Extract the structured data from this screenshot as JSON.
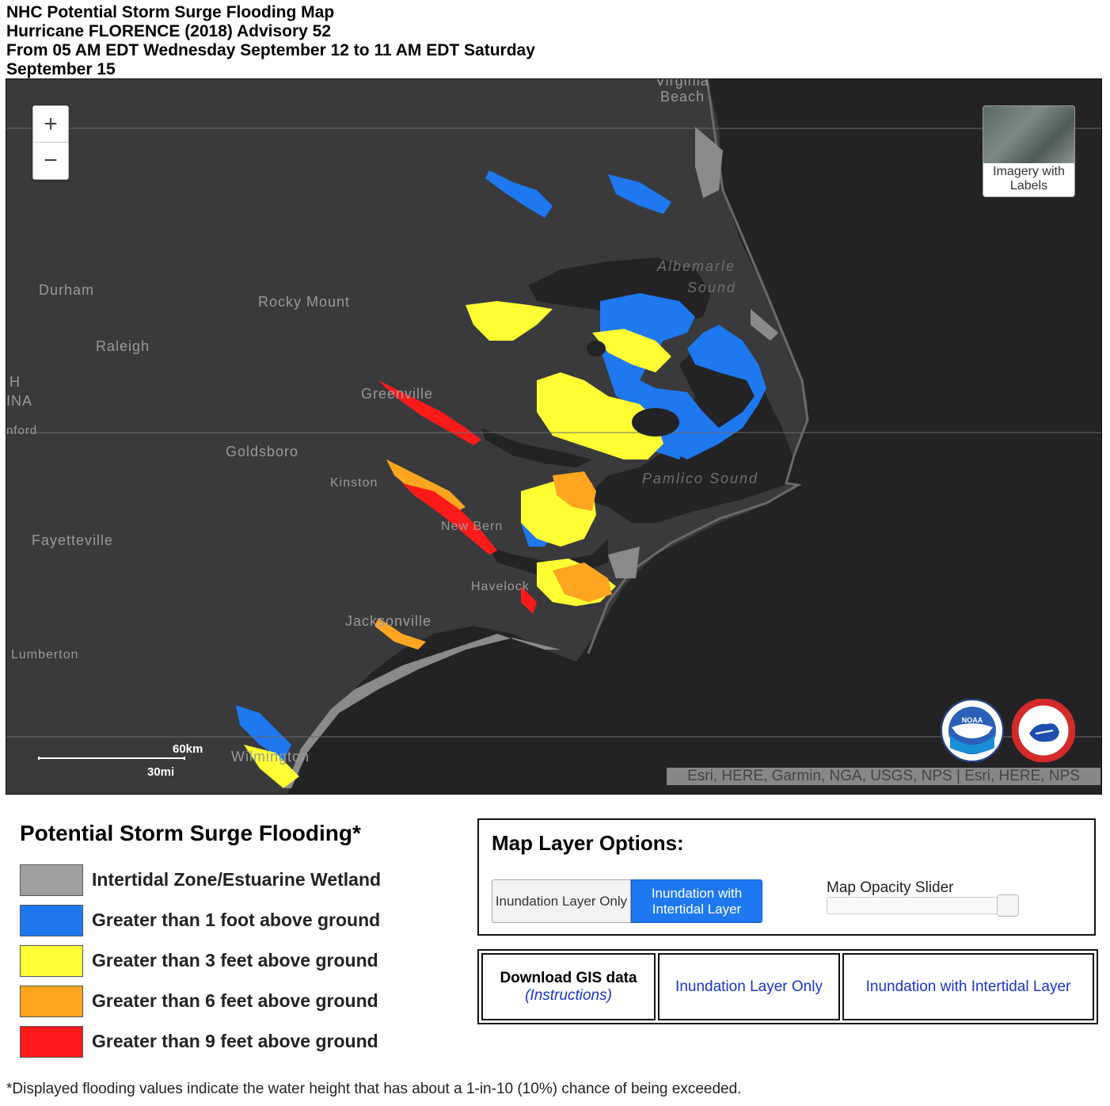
{
  "header": {
    "line1": "NHC Potential Storm Surge Flooding Map",
    "line2": "Hurricane FLORENCE (2018) Advisory 52",
    "line3": "From 05 AM EDT Wednesday September 12 to 11 AM EDT Saturday",
    "line4": "September 15"
  },
  "map": {
    "zoom_in": "+",
    "zoom_out": "−",
    "basemap_toggle": "Imagery with Labels",
    "places": {
      "virginia_beach_1": "Virginia",
      "virginia_beach_2": "Beach",
      "albemarle_1": "Albemarle",
      "albemarle_2": "Sound",
      "durham": "Durham",
      "rocky_mount": "Rocky Mount",
      "raleigh": "Raleigh",
      "nc_fragment_1": "H",
      "nc_fragment_2": "INA",
      "sanford_fragment": "nford",
      "greenville": "Greenville",
      "goldsboro": "Goldsboro",
      "kinston": "Kinston",
      "pamlico": "Pamlico Sound",
      "new_bern": "New Bern",
      "fayetteville": "Fayetteville",
      "havelock": "Havelock",
      "jacksonville": "Jacksonville",
      "lumberton": "Lumberton",
      "wilmington": "Wilmington"
    },
    "scale": {
      "km": "60km",
      "mi": "30mi"
    },
    "attribution": "Esri, HERE, Garmin, NGA, USGS, NPS | Esri, HERE, NPS",
    "logos": {
      "noaa": "NOAA",
      "nws": "NATIONAL WEATHER SERVICE"
    }
  },
  "legend": {
    "title": "Potential Storm Surge Flooding*",
    "items": [
      {
        "label": "Intertidal Zone/Estuarine Wetland",
        "color": "#a0a0a0"
      },
      {
        "label": "Greater than 1 foot above ground",
        "color": "#1e78f0"
      },
      {
        "label": "Greater than 3 feet above ground",
        "color": "#ffff33"
      },
      {
        "label": "Greater than 6 feet above ground",
        "color": "#ffa51f"
      },
      {
        "label": "Greater than 9 feet above ground",
        "color": "#ff1a1a"
      }
    ]
  },
  "layer_options": {
    "title": "Map Layer Options:",
    "btn_inundation_only": "Inundation Layer Only",
    "btn_inundation_intertidal": "Inundation with Intertidal Layer",
    "opacity_label": "Map Opacity Slider",
    "opacity_value": 1.0
  },
  "gis": {
    "title": "Download GIS data",
    "instructions": "(Instructions)",
    "link_only": "Inundation Layer Only",
    "link_intertidal": "Inundation with Intertidal Layer"
  },
  "footnote": "*Displayed flooding values indicate the water height that has about a 1-in-10 (10%) chance of being exceeded."
}
